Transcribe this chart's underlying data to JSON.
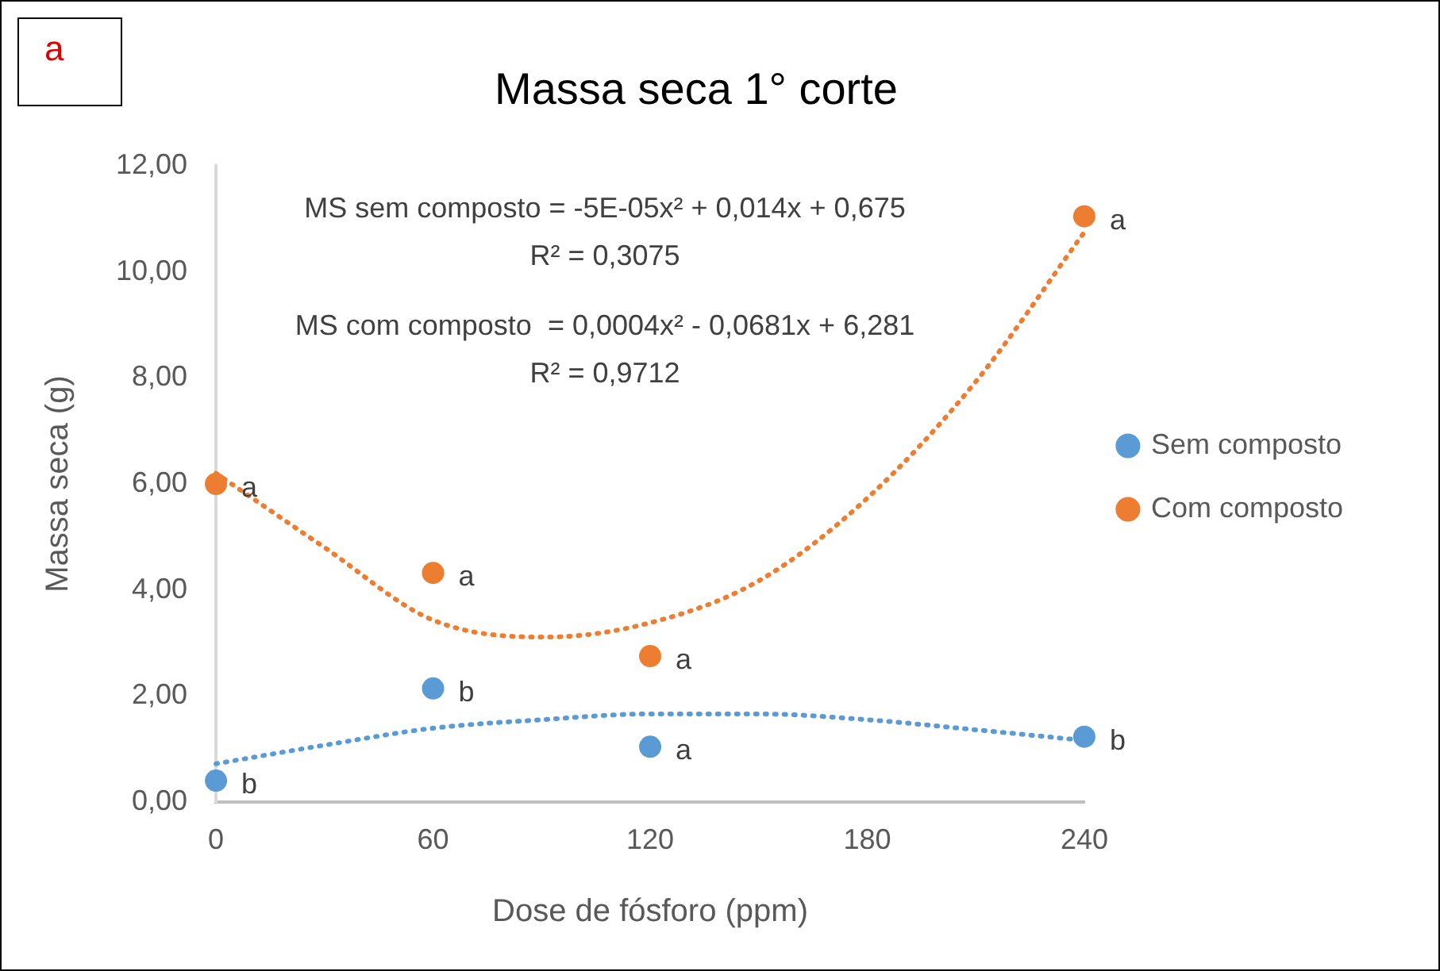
{
  "chart_data": {
    "type": "scatter",
    "title": "Massa seca 1° corte",
    "xlabel": "Dose de fósforo (ppm)",
    "ylabel": "Massa seca (g)",
    "xlim": [
      0,
      240
    ],
    "xticks": [
      0,
      60,
      120,
      180,
      240
    ],
    "ylim": [
      0,
      12
    ],
    "yticks": [
      {
        "value": 0,
        "label": "0,00"
      },
      {
        "value": 2,
        "label": "2,00"
      },
      {
        "value": 4,
        "label": "4,00"
      },
      {
        "value": 6,
        "label": "6,00"
      },
      {
        "value": 8,
        "label": "8,00"
      },
      {
        "value": 10,
        "label": "10,00"
      },
      {
        "value": 12,
        "label": "12,00"
      }
    ],
    "grid": false,
    "legend": "right",
    "marker": "circle",
    "series": [
      {
        "name": "Sem composto",
        "type": "scatter",
        "color": "#5b9bd5",
        "x": [
          0,
          60,
          120,
          240
        ],
        "values": [
          0.4,
          2.14,
          1.04,
          1.23
        ]
      },
      {
        "name": "Com composto",
        "type": "scatter",
        "color": "#ed7d31",
        "x": [
          0,
          60,
          120,
          240
        ],
        "values": [
          6.0,
          4.32,
          2.75,
          11.05
        ]
      },
      {
        "type": "line",
        "color": "#5b9bd5",
        "line_style": "dotted",
        "marker": "none",
        "x": [
          0,
          30,
          60,
          90,
          120,
          150,
          180,
          210,
          240
        ],
        "values": [
          0.72,
          1.07,
          1.39,
          1.55,
          1.66,
          1.66,
          1.55,
          1.36,
          1.16
        ]
      },
      {
        "type": "line",
        "color": "#ed7d31",
        "line_style": "dotted",
        "marker": "none",
        "x": [
          0,
          30,
          60,
          91,
          120,
          150,
          180,
          210,
          240
        ],
        "values": [
          6.2,
          4.8,
          3.43,
          3.11,
          3.38,
          4.17,
          5.73,
          7.93,
          10.75
        ]
      }
    ],
    "annotations": [
      "a",
      "MS sem composto = -5E-05x² + 0,014x + 0,675",
      "R² = 0,3075",
      "MS com composto  = 0,0004x² - 0,0681x + 6,281",
      "R² = 0,9712",
      {
        "text": "b",
        "x": 0,
        "y": 0.4
      },
      {
        "text": "b",
        "x": 60,
        "y": 2.14
      },
      {
        "text": "a",
        "x": 120,
        "y": 1.04
      },
      {
        "text": "b",
        "x": 240,
        "y": 1.23
      },
      {
        "text": "a",
        "x": 0,
        "y": 6.0
      },
      {
        "text": "a",
        "x": 60,
        "y": 4.32
      },
      {
        "text": "a",
        "x": 120,
        "y": 2.75
      },
      {
        "text": "a",
        "x": 240,
        "y": 11.05
      }
    ]
  }
}
